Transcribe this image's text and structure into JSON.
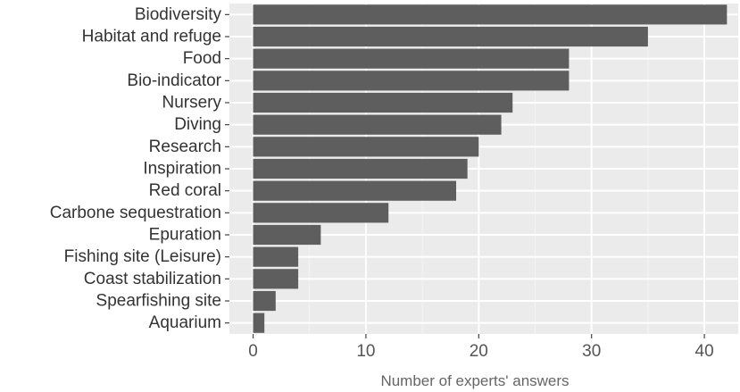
{
  "chart_data": {
    "type": "bar",
    "orientation": "horizontal",
    "categories": [
      "Biodiversity",
      "Habitat and refuge",
      "Food",
      "Bio-indicator",
      "Nursery",
      "Diving",
      "Research",
      "Inspiration",
      "Red coral",
      "Carbone sequestration",
      "Epuration",
      "Fishing site (Leisure)",
      "Coast stabilization",
      "Spearfishing site",
      "Aquarium"
    ],
    "values": [
      42,
      35,
      28,
      28,
      23,
      22,
      20,
      19,
      18,
      12,
      6,
      4,
      4,
      2,
      1
    ],
    "xlabel": "Number of experts' answers",
    "ylabel": "",
    "xlim": [
      -2.1,
      43
    ],
    "xticks": [
      "0",
      "10",
      "20",
      "30",
      "40"
    ],
    "grid": true,
    "colors": {
      "bar": "#5e5e5e",
      "panel": "#ebebeb",
      "grid_major": "#ffffff",
      "grid_minor": "#f5f5f5"
    }
  }
}
